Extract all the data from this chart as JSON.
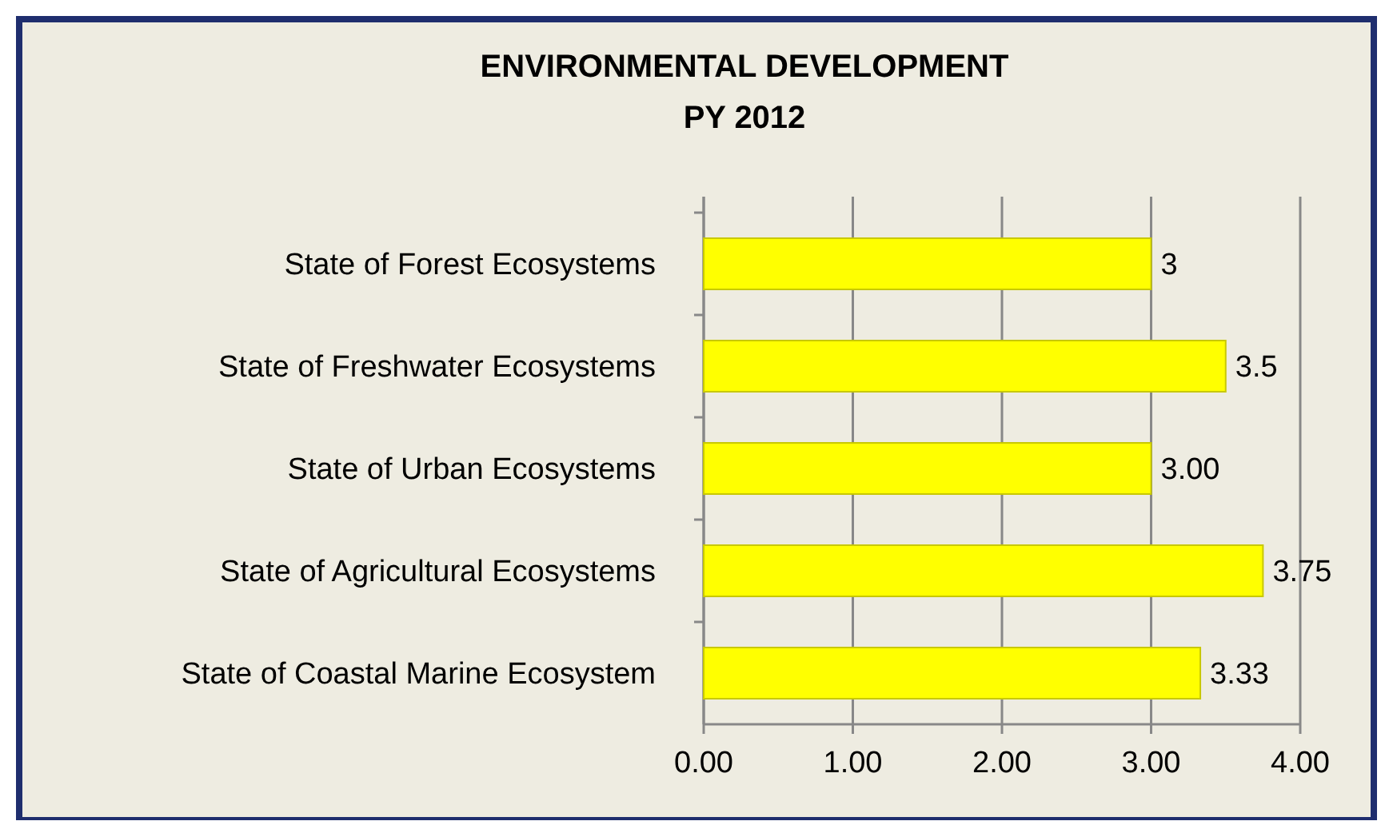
{
  "chart_data": {
    "type": "bar",
    "orientation": "horizontal",
    "title": "ENVIRONMENTAL DEVELOPMENT\nPY 2012",
    "categories": [
      "State of Forest Ecosystems",
      "State of Freshwater Ecosystems",
      "State of Urban Ecosystems",
      "State of Agricultural Ecosystems",
      "State of Coastal Marine Ecosystem"
    ],
    "values": [
      3,
      3.5,
      3.0,
      3.75,
      3.33
    ],
    "value_labels": [
      "3",
      "3.5",
      "3.00",
      "3.75",
      "3.33"
    ],
    "color": "#ffff00",
    "xlim": [
      0,
      4
    ],
    "xticks": [
      {
        "value": 0,
        "label": "0.00"
      },
      {
        "value": 1,
        "label": "1.00"
      },
      {
        "value": 2,
        "label": "2.00"
      },
      {
        "value": 3,
        "label": "3.00"
      },
      {
        "value": 4,
        "label": "4.00"
      }
    ],
    "grid": "x"
  }
}
